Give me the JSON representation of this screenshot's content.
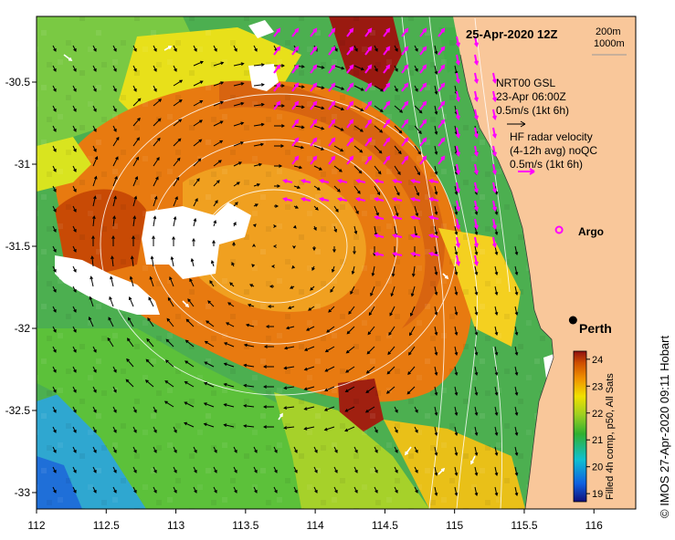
{
  "map": {
    "date_label": "25-Apr-2020 12Z",
    "contour_legend": [
      "200m",
      "1000m"
    ],
    "gsl_label": [
      "NRT00 GSL",
      "23-Apr 06:00Z",
      "0.5m/s (1kt 6h)"
    ],
    "radar_label": [
      "HF radar velocity",
      "(4-12h avg) noQC",
      "0.5m/s (1kt 6h)"
    ],
    "argo_label": "Argo",
    "city_label": "Perth",
    "credit": "© IMOS 27-Apr-2020 09:11 Hobart",
    "colorbar_title": "Filled 4h comp, p50, All Sats",
    "colors": {
      "land": "#f9c79a",
      "gsl_arrow": "#000000",
      "radar_arrow": "#ff00ff",
      "argo": "#ff00ff",
      "contour": "#ffffff",
      "cloud": "#ffffff"
    }
  },
  "chart_data": {
    "type": "heatmap",
    "xlabel": "",
    "ylabel": "",
    "xlim": [
      112,
      116.3
    ],
    "ylim": [
      -33.1,
      -30.1
    ],
    "x_ticks": [
      "112",
      "112.5",
      "113",
      "113.5",
      "114",
      "114.5",
      "115",
      "115.5",
      "116"
    ],
    "y_ticks": [
      "-30.5",
      "-31",
      "-31.5",
      "-32",
      "-32.5",
      "-33"
    ],
    "colorbar": {
      "ticks": [
        "19",
        "20",
        "21",
        "22",
        "23",
        "24"
      ],
      "range": [
        18.7,
        24.3
      ]
    },
    "argo": {
      "lon": 115.75,
      "lat": -31.4
    },
    "perth": {
      "lon": 115.85,
      "lat": -31.95
    }
  }
}
